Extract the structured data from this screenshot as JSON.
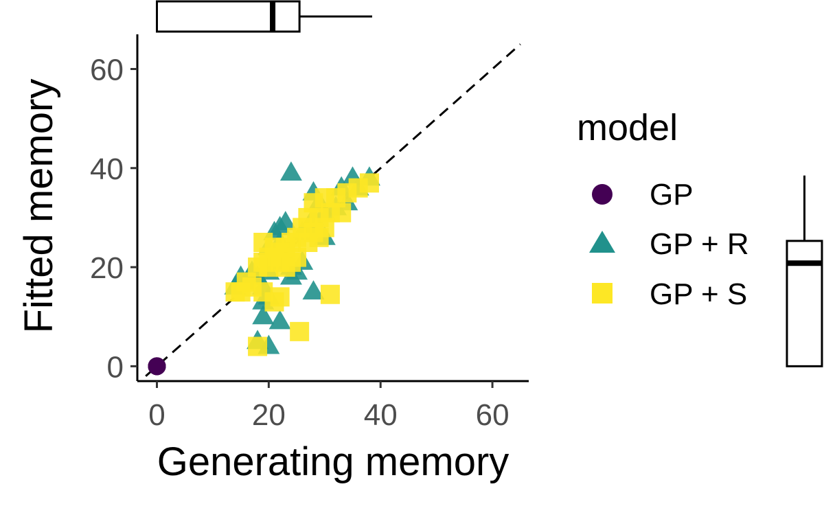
{
  "chart_data": {
    "type": "scatter",
    "xlabel": "Generating memory",
    "ylabel": "Fitted memory",
    "xlim": [
      -3.5,
      66.5
    ],
    "ylim": [
      -3,
      67
    ],
    "xticks": [
      0,
      20,
      40,
      60
    ],
    "yticks": [
      0,
      20,
      40,
      60
    ],
    "grid": false,
    "reference_line": {
      "style": "dashed",
      "slope": 1,
      "intercept": 0
    },
    "legend": {
      "title": "model",
      "placement": "right"
    },
    "colors": {
      "GP": "#440154",
      "GP + R": "#21918c",
      "GP + S": "#fde725"
    },
    "series": [
      {
        "name": "GP",
        "marker": "circle",
        "points": [
          [
            0,
            0
          ],
          [
            0,
            0
          ],
          [
            0,
            0
          ],
          [
            0,
            0
          ],
          [
            0,
            0
          ]
        ]
      },
      {
        "name": "GP + R",
        "marker": "triangle",
        "points": [
          [
            24,
            39
          ],
          [
            28,
            35
          ],
          [
            29,
            33
          ],
          [
            35,
            38
          ],
          [
            38,
            38
          ],
          [
            36,
            36
          ],
          [
            33,
            36
          ],
          [
            30,
            31
          ],
          [
            28,
            30
          ],
          [
            32,
            32
          ],
          [
            27,
            28
          ],
          [
            26,
            27
          ],
          [
            23,
            29
          ],
          [
            22,
            28
          ],
          [
            21,
            27
          ],
          [
            22,
            25
          ],
          [
            20,
            24
          ],
          [
            21,
            22
          ],
          [
            23,
            22
          ],
          [
            24,
            20
          ],
          [
            25,
            19
          ],
          [
            24,
            18
          ],
          [
            22,
            21
          ],
          [
            20,
            19
          ],
          [
            18,
            18
          ],
          [
            17,
            19
          ],
          [
            16,
            17
          ],
          [
            15,
            18
          ],
          [
            14,
            16
          ],
          [
            19,
            16
          ],
          [
            20,
            14
          ],
          [
            19,
            13
          ],
          [
            19,
            10
          ],
          [
            22,
            9
          ],
          [
            20,
            4
          ],
          [
            18,
            5
          ],
          [
            28,
            15
          ],
          [
            30,
            26
          ],
          [
            34,
            33
          ],
          [
            26,
            21
          ]
        ]
      },
      {
        "name": "GP + S",
        "marker": "square",
        "points": [
          [
            38,
            37
          ],
          [
            36,
            36
          ],
          [
            34,
            35
          ],
          [
            32,
            34
          ],
          [
            30,
            34
          ],
          [
            28,
            33
          ],
          [
            31,
            31
          ],
          [
            27,
            30
          ],
          [
            29,
            30
          ],
          [
            33,
            31
          ],
          [
            30,
            28
          ],
          [
            28,
            27
          ],
          [
            26,
            28
          ],
          [
            25,
            26
          ],
          [
            24,
            25
          ],
          [
            23,
            24
          ],
          [
            22,
            23
          ],
          [
            21,
            22
          ],
          [
            20,
            22
          ],
          [
            19,
            21
          ],
          [
            20,
            20
          ],
          [
            22,
            21
          ],
          [
            23,
            20
          ],
          [
            24,
            21
          ],
          [
            19,
            25
          ],
          [
            21,
            24
          ],
          [
            18,
            20
          ],
          [
            17,
            16
          ],
          [
            16,
            17
          ],
          [
            15,
            15
          ],
          [
            14,
            15
          ],
          [
            19,
            15
          ],
          [
            21,
            13
          ],
          [
            22,
            14
          ],
          [
            31,
            14.5
          ],
          [
            25.5,
            7
          ],
          [
            18,
            4
          ],
          [
            25,
            22
          ],
          [
            27,
            25
          ],
          [
            29,
            26
          ]
        ]
      }
    ],
    "marginal_boxplots": {
      "x": {
        "min": 0,
        "q1": 0,
        "median": 20.7,
        "q3": 25.5,
        "max": 38.5
      },
      "y": {
        "min": 0,
        "q1": 0,
        "median": 20.8,
        "q3": 25.3,
        "max": 38.5
      }
    }
  }
}
